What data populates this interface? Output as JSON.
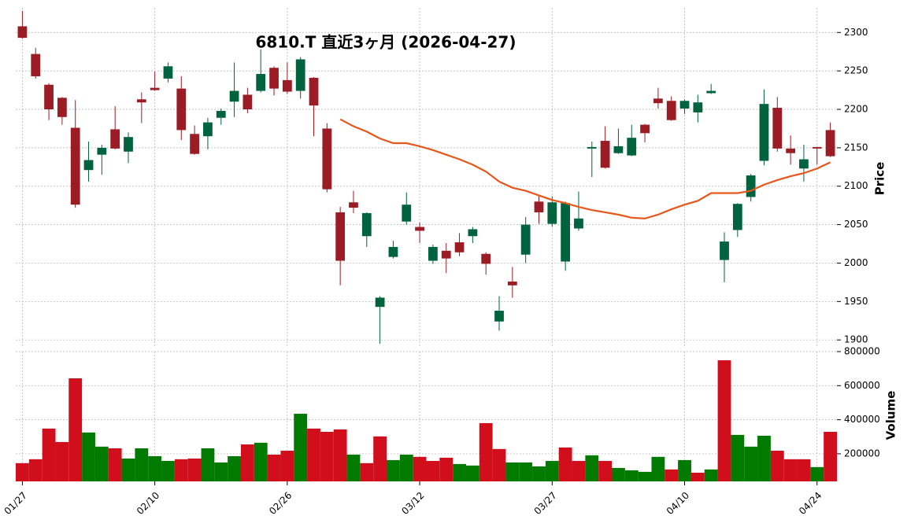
{
  "chart_data": {
    "type": "candlestick",
    "title": "6810.T  直近3ヶ月  (2026-04-27)",
    "ylabel": "Price",
    "y2label": "Volume",
    "categories": [
      "01/27",
      null,
      null,
      null,
      null,
      null,
      null,
      null,
      null,
      null,
      "02/10",
      null,
      null,
      null,
      null,
      null,
      null,
      null,
      null,
      null,
      "02/26",
      null,
      null,
      null,
      null,
      null,
      null,
      null,
      null,
      null,
      "03/12",
      null,
      null,
      null,
      null,
      null,
      null,
      null,
      null,
      null,
      "03/27",
      null,
      null,
      null,
      null,
      null,
      null,
      null,
      null,
      null,
      "04/10",
      null,
      null,
      null,
      null,
      null,
      null,
      null,
      null,
      null,
      "04/24",
      null
    ],
    "open": [
      2308,
      2272,
      2232,
      2215,
      2176,
      2121,
      2141,
      2174,
      2145,
      2213,
      2228,
      2240,
      2227,
      2168,
      2165,
      2189,
      2210,
      2219,
      2224,
      2254,
      2238,
      2224,
      2241,
      2175,
      2066,
      2079,
      2035,
      1943,
      2008,
      2054,
      2047,
      2003,
      2016,
      2027,
      2035,
      2012,
      1924,
      1976,
      2011,
      2080,
      2051,
      2002,
      2045,
      2149,
      2159,
      2143,
      2140,
      2180,
      2214,
      2211,
      2201,
      2196,
      2221,
      2004,
      2043,
      2086,
      2133,
      2202,
      2149,
      2123,
      2151,
      2173
    ],
    "high": [
      2328,
      2280,
      2234,
      2216,
      2212,
      2158,
      2154,
      2204,
      2170,
      2222,
      2249,
      2261,
      2243,
      2179,
      2189,
      2201,
      2261,
      2228,
      2278,
      2256,
      2261,
      2268,
      2242,
      2182,
      2073,
      2094,
      2066,
      1957,
      2029,
      2092,
      2053,
      2024,
      2026,
      2039,
      2047,
      2014,
      1957,
      1995,
      2060,
      2087,
      2087,
      2080,
      2093,
      2158,
      2178,
      2175,
      2180,
      2181,
      2228,
      2217,
      2213,
      2219,
      2233,
      2040,
      2078,
      2116,
      2226,
      2216,
      2166,
      2154,
      2151,
      2183
    ],
    "low": [
      2292,
      2240,
      2186,
      2180,
      2072,
      2106,
      2115,
      2148,
      2130,
      2182,
      2224,
      2235,
      2160,
      2141,
      2148,
      2180,
      2190,
      2195,
      2222,
      2218,
      2220,
      2214,
      2165,
      2092,
      1971,
      2065,
      2021,
      1895,
      2006,
      2050,
      2026,
      1999,
      1987,
      2009,
      2026,
      1985,
      1912,
      1955,
      2000,
      2051,
      2047,
      1990,
      2042,
      2112,
      2123,
      2142,
      2139,
      2157,
      2201,
      2185,
      2194,
      2183,
      2220,
      1975,
      2034,
      2080,
      2127,
      2145,
      2128,
      2106,
      2128,
      2138
    ],
    "close": [
      2293,
      2243,
      2200,
      2190,
      2076,
      2134,
      2150,
      2149,
      2164,
      2209,
      2225,
      2256,
      2173,
      2142,
      2183,
      2198,
      2224,
      2200,
      2246,
      2227,
      2223,
      2265,
      2205,
      2096,
      2003,
      2072,
      2065,
      1955,
      2021,
      2076,
      2042,
      2021,
      2006,
      2014,
      2044,
      1999,
      1938,
      1971,
      2050,
      2066,
      2079,
      2078,
      2058,
      2151,
      2124,
      2152,
      2163,
      2169,
      2208,
      2186,
      2211,
      2209,
      2224,
      2028,
      2077,
      2114,
      2207,
      2149,
      2143,
      2135,
      2149,
      2139
    ],
    "ma": [
      null,
      null,
      null,
      null,
      null,
      null,
      null,
      null,
      null,
      null,
      null,
      null,
      null,
      null,
      null,
      null,
      null,
      null,
      null,
      null,
      null,
      null,
      null,
      null,
      2187,
      2178,
      2171,
      2162,
      2156,
      2156,
      2152,
      2147,
      2141,
      2135,
      2128,
      2119,
      2106,
      2098,
      2094,
      2088,
      2082,
      2078,
      2073,
      2069,
      2066,
      2063,
      2059,
      2058,
      2063,
      2070,
      2076,
      2081,
      2091,
      2091,
      2091,
      2094,
      2102,
      2108,
      2113,
      2117,
      2123,
      2131
    ],
    "volume": [
      145000,
      168000,
      348000,
      269000,
      643000,
      325000,
      242000,
      232000,
      172000,
      232000,
      186000,
      158000,
      168000,
      172000,
      232000,
      149000,
      186000,
      255000,
      265000,
      195000,
      218000,
      435000,
      348000,
      329000,
      343000,
      195000,
      145000,
      302000,
      163000,
      195000,
      182000,
      158000,
      177000,
      140000,
      131000,
      380000,
      228000,
      149000,
      149000,
      126000,
      158000,
      237000,
      158000,
      191000,
      158000,
      117000,
      103000,
      94000,
      182000,
      108000,
      163000,
      89000,
      108000,
      749000,
      311000,
      242000,
      306000,
      218000,
      168000,
      168000,
      122000,
      329000
    ],
    "ylim": [
      1892,
      2332
    ],
    "yticks": [
      1900,
      1950,
      2000,
      2050,
      2100,
      2150,
      2200,
      2250,
      2300
    ],
    "y2lim": [
      38000,
      800000
    ],
    "y2ticks": [
      200000,
      400000,
      600000,
      800000
    ],
    "up_color": "#006340",
    "down_color": "#9b1c24",
    "volume_up_color": "#007a00",
    "volume_down_color": "#d10f1c",
    "ma_color": "#e8561a",
    "grid": true
  }
}
